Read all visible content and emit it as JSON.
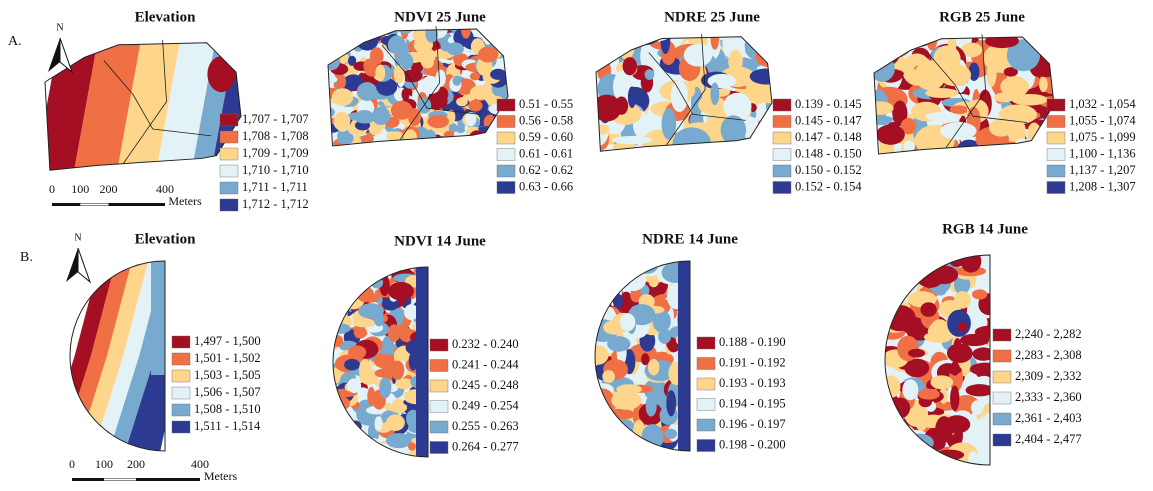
{
  "rows": [
    {
      "label": "A.",
      "north": "N",
      "scale": {
        "ticks": [
          "0",
          "100",
          "200",
          "400"
        ],
        "unit": "Meters"
      },
      "panels": [
        {
          "title": "Elevation",
          "legend": [
            "1,707 - 1,707",
            "1,708 - 1,708",
            "1,709 - 1,709",
            "1,710 - 1,710",
            "1,711 - 1,711",
            "1,712 - 1,712"
          ]
        },
        {
          "title": "NDVI 25 June",
          "legend": [
            "0.51 - 0.55",
            "0.56 - 0.58",
            "0.59 - 0.60",
            "0.61 - 0.61",
            "0.62 - 0.62",
            "0.63 - 0.66"
          ]
        },
        {
          "title": "NDRE 25 June",
          "legend": [
            "0.139 - 0.145",
            "0.145 - 0.147",
            "0.147 - 0.148",
            "0.148 - 0.150",
            "0.150 - 0.152",
            "0.152 - 0.154"
          ]
        },
        {
          "title": "RGB 25 June",
          "legend": [
            "1,032 - 1,054",
            "1,055 - 1,074",
            "1,075 - 1,099",
            "1,100 - 1,136",
            "1,137 - 1,207",
            "1,208 - 1,307"
          ]
        }
      ]
    },
    {
      "label": "B.",
      "north": "N",
      "scale": {
        "ticks": [
          "0",
          "100",
          "200",
          "400"
        ],
        "unit": "Meters"
      },
      "panels": [
        {
          "title": "Elevation",
          "legend": [
            "1,497 - 1,500",
            "1,501 - 1,502",
            "1,503 - 1,505",
            "1,506 - 1,507",
            "1,508 - 1,510",
            "1,511 - 1,514"
          ]
        },
        {
          "title": "NDVI 14 June",
          "legend": [
            "0.232 - 0.240",
            "0.241 - 0.244",
            "0.245 - 0.248",
            "0.249 - 0.254",
            "0.255 - 0.263",
            "0.264 - 0.277"
          ]
        },
        {
          "title": "NDRE 14 June",
          "legend": [
            "0.188 - 0.190",
            "0.191 - 0.192",
            "0.193 - 0.193",
            "0.194 - 0.195",
            "0.196 - 0.197",
            "0.198 - 0.200"
          ]
        },
        {
          "title": "RGB 14 June",
          "legend": [
            "2,240 - 2,282",
            "2,283 - 2,308",
            "2,309 - 2,332",
            "2,333 - 2,360",
            "2,361 - 2,403",
            "2,404 - 2,477"
          ]
        }
      ]
    }
  ]
}
